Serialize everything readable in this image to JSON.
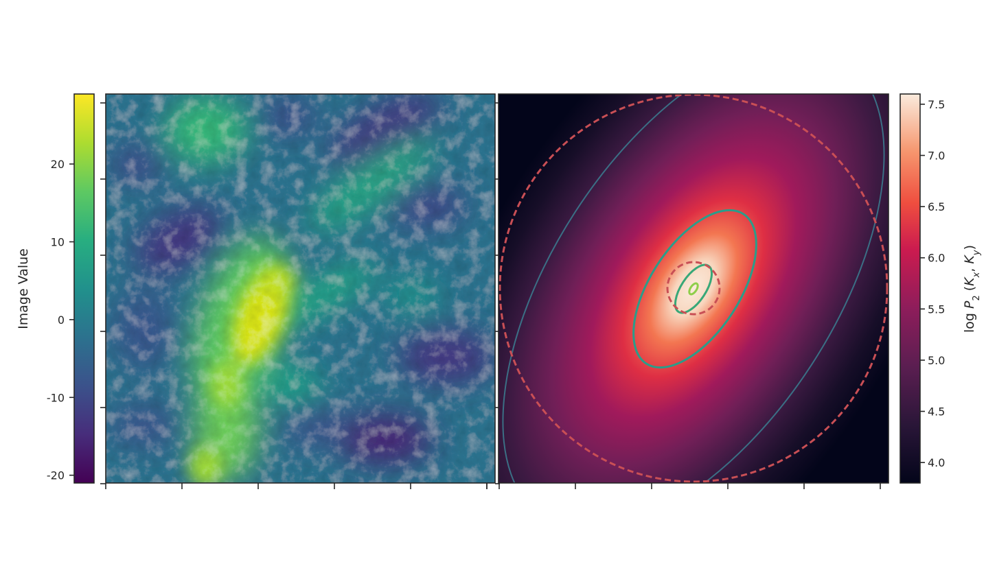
{
  "chart_data": [
    {
      "type": "heatmap",
      "panel": "image",
      "colormap": "viridis",
      "colorbar": {
        "label": "Image Value",
        "range": [
          -21,
          29
        ],
        "ticks": [
          20,
          10,
          0,
          -10,
          -20
        ],
        "tick_labels": [
          "20",
          "10",
          "0",
          "-10",
          "-20"
        ]
      },
      "x_tick_count": 6,
      "y_tick_count": 6,
      "x_tick_labels_shown": false,
      "y_tick_labels_shown": false
    },
    {
      "type": "heatmap",
      "panel": "power-spectrum",
      "colormap": "rocket",
      "colorbar": {
        "label": "log P2 (Kx, Ky)",
        "range": [
          3.8,
          7.6
        ],
        "ticks": [
          7.5,
          7.0,
          6.5,
          6.0,
          5.5,
          5.0,
          4.5,
          4.0
        ],
        "tick_labels": [
          "7.5",
          "7.0",
          "6.5",
          "6.0",
          "5.5",
          "5.0",
          "4.5",
          "4.0"
        ]
      },
      "contours": {
        "ellipse_count": 4,
        "ellipse_colors": [
          "#3b6f85",
          "#2a9d8a",
          "#38a878",
          "#8fce4a"
        ],
        "dashed_circle_count": 2,
        "dashed_circle_color": "#c94f55"
      },
      "x_tick_count": 6,
      "x_tick_labels_shown": false
    }
  ],
  "colors": {
    "frame": "#262626",
    "dashed_circle": "#c94f55"
  }
}
